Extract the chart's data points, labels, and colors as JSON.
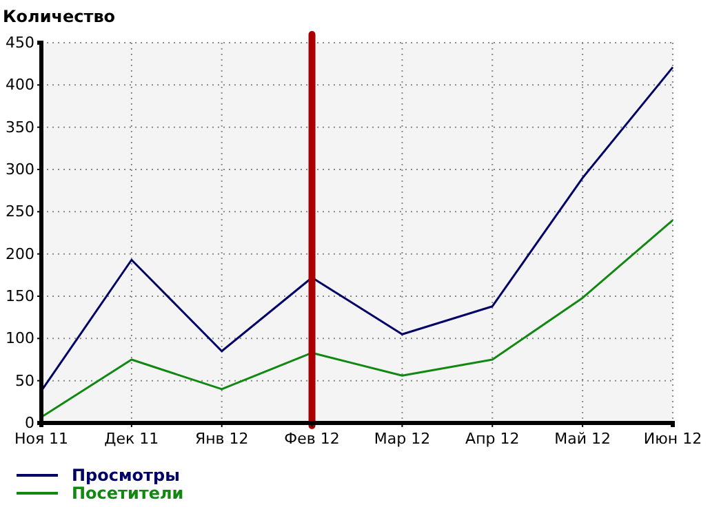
{
  "chart_data": {
    "type": "line",
    "ylabel": "Количество",
    "categories": [
      "Ноя 11",
      "Дек 11",
      "Янв 12",
      "Фев 12",
      "Мар 12",
      "Апр 12",
      "Май 12",
      "Июн 12"
    ],
    "series": [
      {
        "name": "Просмотры",
        "color": "#000066",
        "values": [
          38,
          193,
          85,
          172,
          105,
          138,
          290,
          421
        ]
      },
      {
        "name": "Посетители",
        "color": "#118811",
        "values": [
          7,
          75,
          40,
          83,
          56,
          75,
          148,
          240
        ]
      }
    ],
    "ylim": [
      0,
      450
    ],
    "yticks": [
      0,
      50,
      100,
      150,
      200,
      250,
      300,
      350,
      400,
      450
    ],
    "grid": true,
    "legend": "bottom left",
    "line_style": "solid",
    "marker": "none",
    "ref_lines": [
      {
        "axis": "x",
        "value": "Фев 12",
        "color": "#aa0000"
      }
    ]
  }
}
